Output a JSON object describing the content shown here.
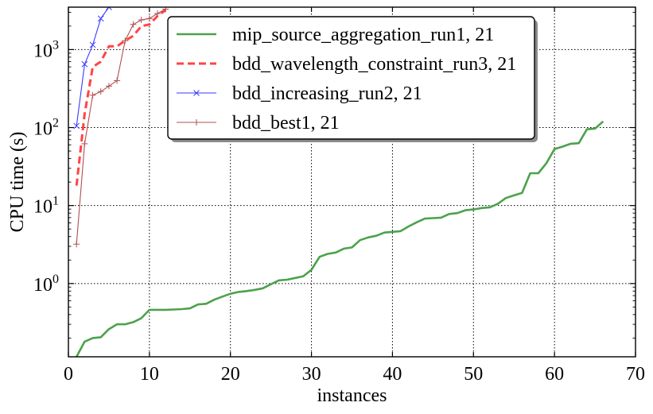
{
  "chart_data": {
    "type": "line",
    "title": "",
    "xlabel": "instances",
    "ylabel": "CPU time (s)",
    "xlim": [
      0,
      70
    ],
    "ylim": [
      0.115,
      3500
    ],
    "yscale": "log",
    "grid": true,
    "legend_position": "top-center",
    "x_ticks": [
      0,
      10,
      20,
      30,
      40,
      50,
      60,
      70
    ],
    "x_tick_labels": [
      "0",
      "10",
      "20",
      "30",
      "40",
      "50",
      "60",
      "70"
    ],
    "y_ticks": [
      1,
      10,
      100,
      1000
    ],
    "y_tick_labels": [
      {
        "base": "10",
        "exp": "0"
      },
      {
        "base": "10",
        "exp": "1"
      },
      {
        "base": "10",
        "exp": "2"
      },
      {
        "base": "10",
        "exp": "3"
      }
    ],
    "series": [
      {
        "name": "mip_source_aggregation_run1, 21",
        "color": "#4ca24c",
        "style": "solid",
        "marker": "none",
        "x": [
          1,
          2,
          3,
          4,
          5,
          6,
          7,
          8,
          9,
          10,
          11,
          12,
          13,
          14,
          15,
          16,
          17,
          18,
          19,
          20,
          21,
          22,
          23,
          24,
          25,
          26,
          27,
          28,
          29,
          30,
          31,
          32,
          33,
          34,
          35,
          36,
          37,
          38,
          39,
          40,
          41,
          42,
          43,
          44,
          45,
          46,
          47,
          48,
          49,
          50,
          51,
          52,
          53,
          54,
          55,
          56,
          57,
          58,
          59,
          60,
          61,
          62,
          63,
          64,
          65,
          66
        ],
        "y": [
          0.115,
          0.18,
          0.2,
          0.205,
          0.26,
          0.3,
          0.3,
          0.32,
          0.36,
          0.46,
          0.46,
          0.46,
          0.465,
          0.47,
          0.48,
          0.54,
          0.55,
          0.62,
          0.68,
          0.74,
          0.78,
          0.8,
          0.83,
          0.87,
          0.98,
          1.1,
          1.12,
          1.18,
          1.24,
          1.5,
          2.2,
          2.4,
          2.5,
          2.8,
          2.9,
          3.6,
          3.9,
          4.1,
          4.5,
          4.6,
          4.7,
          5.4,
          6.1,
          6.8,
          6.9,
          7.0,
          7.8,
          8.0,
          8.7,
          8.9,
          9.3,
          9.5,
          10.5,
          12.5,
          13.5,
          14.5,
          26,
          26,
          35,
          53,
          57,
          62,
          63,
          95,
          97,
          120
        ]
      },
      {
        "name": "bdd_wavelength_constraint_run3, 21",
        "color": "#ff4444",
        "style": "dashed",
        "marker": "none",
        "x": [
          1,
          2,
          3,
          4,
          5,
          6,
          7,
          8,
          9,
          10,
          11,
          12
        ],
        "y": [
          18,
          150,
          600,
          700,
          1100,
          1100,
          1300,
          1500,
          2000,
          2100,
          2700,
          3200
        ]
      },
      {
        "name": "bdd_increasing_run2, 21",
        "color": "#3a3aff",
        "style": "solid",
        "marker": "x",
        "x": [
          1,
          2,
          3,
          4,
          5
        ],
        "y": [
          105,
          650,
          1150,
          2500,
          3500
        ]
      },
      {
        "name": "bdd_best1, 21",
        "color": "#b05050",
        "style": "solid",
        "marker": "+",
        "x": [
          1,
          2,
          3,
          4,
          5,
          6,
          7,
          8,
          9,
          10,
          11,
          12
        ],
        "y": [
          3.2,
          62,
          260,
          290,
          340,
          400,
          1300,
          2100,
          2400,
          2500,
          2900,
          3300
        ]
      }
    ]
  }
}
